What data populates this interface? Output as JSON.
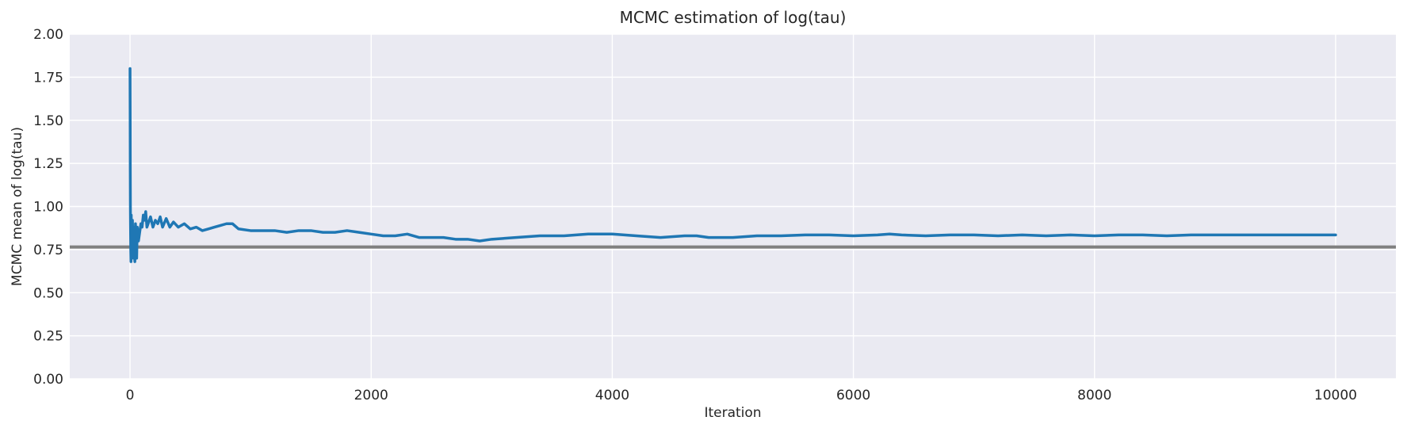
{
  "chart_data": {
    "type": "line",
    "title": "MCMC estimation of log(tau)",
    "xlabel": "Iteration",
    "ylabel": "MCMC mean of log(tau)",
    "xlim": [
      -500,
      10500
    ],
    "ylim": [
      0,
      2
    ],
    "xticks": [
      0,
      2000,
      4000,
      6000,
      8000,
      10000
    ],
    "xtick_labels": [
      "0",
      "2000",
      "4000",
      "6000",
      "8000",
      "10000"
    ],
    "yticks": [
      0,
      0.25,
      0.5,
      0.75,
      1.0,
      1.25,
      1.5,
      1.75,
      2.0
    ],
    "ytick_labels": [
      "0.00",
      "0.25",
      "0.50",
      "0.75",
      "1.00",
      "1.25",
      "1.50",
      "1.75",
      "2.00"
    ],
    "grid": true,
    "background": "#eaeaf2",
    "series": [
      {
        "color": "#1f77b4",
        "x": [
          0,
          1,
          2,
          3,
          4,
          6,
          8,
          10,
          12,
          15,
          18,
          20,
          25,
          30,
          35,
          40,
          45,
          50,
          55,
          60,
          70,
          80,
          90,
          100,
          110,
          120,
          130,
          140,
          150,
          170,
          190,
          210,
          230,
          250,
          270,
          300,
          330,
          360,
          400,
          450,
          500,
          550,
          600,
          650,
          700,
          750,
          800,
          850,
          900,
          1000,
          1100,
          1200,
          1300,
          1400,
          1500,
          1600,
          1700,
          1800,
          1900,
          2000,
          2100,
          2200,
          2300,
          2400,
          2500,
          2600,
          2700,
          2800,
          2900,
          3000,
          3200,
          3400,
          3600,
          3800,
          4000,
          4200,
          4400,
          4600,
          4700,
          4800,
          5000,
          5200,
          5400,
          5600,
          5800,
          6000,
          6200,
          6300,
          6400,
          6600,
          6800,
          7000,
          7200,
          7400,
          7600,
          7800,
          8000,
          8200,
          8400,
          8600,
          8800,
          9000,
          9200,
          9400,
          9600,
          9800,
          10000
        ],
        "y": [
          1.8,
          1.55,
          1.2,
          1.0,
          0.9,
          0.75,
          0.68,
          0.95,
          0.72,
          0.85,
          0.7,
          0.92,
          0.75,
          0.88,
          0.72,
          0.68,
          0.9,
          0.82,
          0.7,
          0.88,
          0.8,
          0.85,
          0.9,
          0.88,
          0.95,
          0.92,
          0.97,
          0.88,
          0.9,
          0.94,
          0.88,
          0.92,
          0.9,
          0.94,
          0.88,
          0.93,
          0.88,
          0.91,
          0.88,
          0.9,
          0.87,
          0.88,
          0.86,
          0.87,
          0.88,
          0.89,
          0.9,
          0.9,
          0.87,
          0.86,
          0.86,
          0.86,
          0.85,
          0.86,
          0.86,
          0.85,
          0.85,
          0.86,
          0.85,
          0.84,
          0.83,
          0.83,
          0.84,
          0.82,
          0.82,
          0.82,
          0.81,
          0.81,
          0.8,
          0.81,
          0.82,
          0.83,
          0.83,
          0.84,
          0.84,
          0.83,
          0.82,
          0.83,
          0.83,
          0.82,
          0.82,
          0.83,
          0.83,
          0.835,
          0.835,
          0.83,
          0.835,
          0.84,
          0.835,
          0.83,
          0.835,
          0.835,
          0.83,
          0.835,
          0.83,
          0.835,
          0.83,
          0.835,
          0.835,
          0.83,
          0.835,
          0.835,
          0.835,
          0.835,
          0.835,
          0.835,
          0.835
        ]
      }
    ],
    "reference_line": {
      "y": 0.765,
      "color": "#808080"
    }
  }
}
